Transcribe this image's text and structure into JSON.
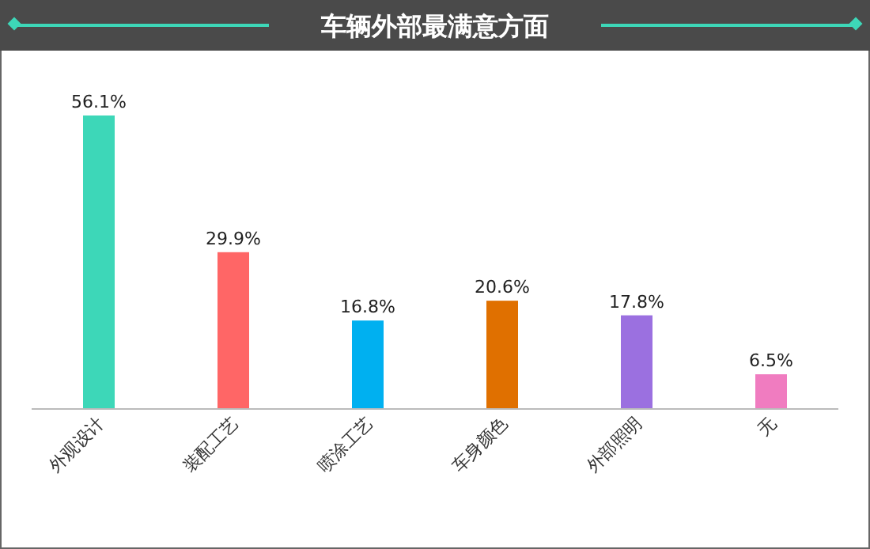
{
  "chart_data": {
    "type": "bar",
    "title": "车辆外部最满意方面",
    "categories": [
      "外观设计",
      "装配工艺",
      "喷涂工艺",
      "车身颜色",
      "外部照明",
      "无"
    ],
    "values": [
      56.1,
      29.9,
      16.8,
      20.6,
      17.8,
      6.5
    ],
    "colors": [
      "#3dd7b8",
      "#ff6666",
      "#00b0f0",
      "#e07000",
      "#9b70e0",
      "#f07cc0"
    ],
    "value_labels": [
      "56.1%",
      "29.9%",
      "16.8%",
      "20.6%",
      "17.8%",
      "6.5%"
    ]
  }
}
